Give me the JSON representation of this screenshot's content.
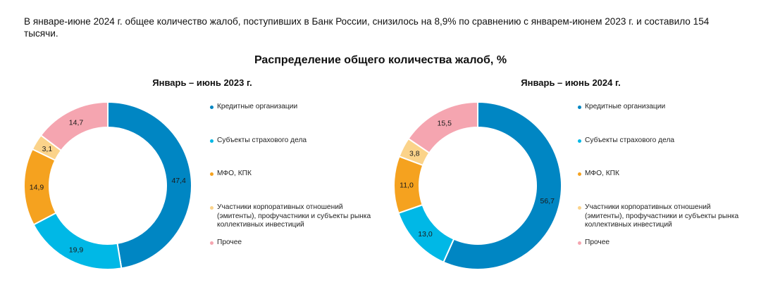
{
  "intro_text": "В январе-июне 2024 г. общее количество жалоб, поступивших в Банк России, снизилось на 8,9% по сравнению с январем-июнем 2023 г. и составило 154 тысячи.",
  "chart_title": "Распределение общего количества жалоб, %",
  "colors": {
    "Кредитные организации": "#0086c3",
    "Субъекты страхового дела": "#00b8e6",
    "МФО, КПК": "#f5a21f",
    "Участники корпоративных отношений": "#fbd38a",
    "Прочее": "#f5a5b0"
  },
  "chart_data": [
    {
      "type": "pie",
      "donut": true,
      "title": "Январь – июнь 2023 г.",
      "categories": [
        "Кредитные организации",
        "Субъекты страхового дела",
        "МФО, КПК",
        "Участники корпоративных отношений (эмитенты), профучастники и субъекты рынка коллективных инвестиций",
        "Прочее"
      ],
      "values": [
        47.4,
        19.9,
        14.9,
        3.1,
        14.7
      ],
      "value_labels": [
        "47,4",
        "19,9",
        "14,9",
        "3,1",
        "14,7"
      ],
      "colors": [
        "#0086c3",
        "#00b8e6",
        "#f5a21f",
        "#fbd38a",
        "#f5a5b0"
      ],
      "legend_position": "right"
    },
    {
      "type": "pie",
      "donut": true,
      "title": "Январь – июнь 2024 г.",
      "categories": [
        "Кредитные организации",
        "Субъекты страхового дела",
        "МФО, КПК",
        "Участники корпоративных отношений (эмитенты), профучастники и субъекты рынка коллективных инвестиций",
        "Прочее"
      ],
      "values": [
        56.7,
        13.0,
        11.0,
        3.8,
        15.5
      ],
      "value_labels": [
        "56,7",
        "13,0",
        "11,0",
        "3,8",
        "15,5"
      ],
      "colors": [
        "#0086c3",
        "#00b8e6",
        "#f5a21f",
        "#fbd38a",
        "#f5a5b0"
      ],
      "legend_position": "right"
    }
  ]
}
